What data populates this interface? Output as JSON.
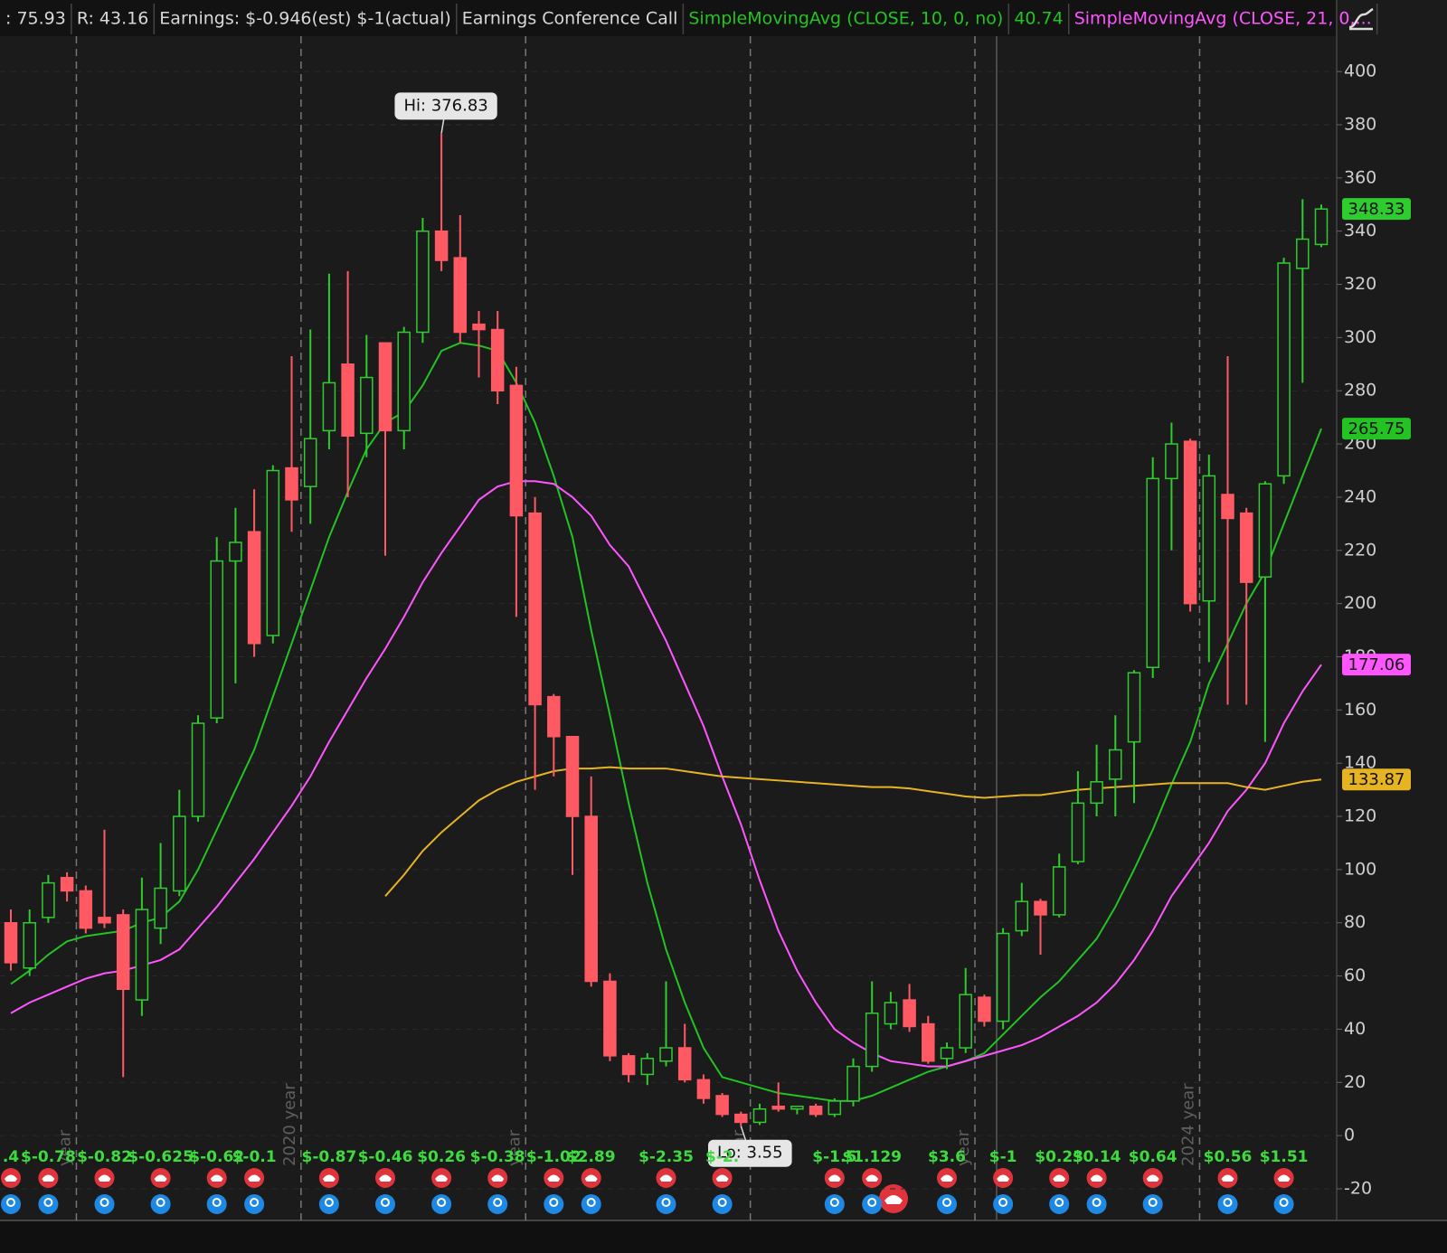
{
  "chart_data": {
    "type": "candlestick",
    "header": [
      {
        "text": ": 75.93"
      },
      {
        "text": "R: 43.16"
      },
      {
        "text": "Earnings: $-0.946(est) $-1(actual)"
      },
      {
        "text": "Earnings Conference Call"
      }
    ],
    "annotations": {
      "hi": "Hi: 376.83",
      "lo": "Lo: 3.55"
    },
    "categories": [
      null,
      null,
      null,
      null,
      "year",
      null,
      null,
      null,
      null,
      null,
      null,
      null,
      null,
      null,
      null,
      null,
      "2020 year",
      null,
      null,
      null,
      null,
      null,
      null,
      null,
      null,
      null,
      null,
      null,
      "year",
      null,
      null,
      null,
      null,
      null,
      null,
      null,
      null,
      null,
      null,
      null,
      "year",
      null,
      null,
      null,
      null,
      null,
      null,
      null,
      null,
      null,
      null,
      null,
      "year",
      null,
      null,
      null,
      null,
      null,
      null,
      null,
      null,
      null,
      null,
      null,
      "2024 year",
      null,
      null,
      null,
      null,
      null,
      null
    ],
    "open": [
      80,
      63,
      82,
      97,
      92,
      82,
      83,
      51,
      78,
      92,
      120,
      157,
      216,
      227,
      188,
      251,
      244,
      265,
      290,
      264,
      298,
      265,
      302,
      340,
      330,
      305,
      303,
      282,
      234,
      165,
      150,
      120,
      58,
      30,
      23,
      28,
      33,
      21,
      15,
      8,
      5,
      11,
      10,
      11,
      8,
      13,
      26,
      42,
      51,
      42,
      29,
      33,
      52,
      43,
      77,
      88,
      83,
      103,
      125,
      134,
      148,
      176,
      247,
      261,
      201,
      241,
      234,
      210,
      248,
      326,
      335
    ],
    "high": [
      85,
      85,
      98,
      99,
      94,
      115,
      85,
      97,
      110,
      130,
      158,
      225,
      236,
      243,
      252,
      293,
      303,
      324,
      325,
      301,
      298,
      304,
      345,
      376.83,
      346,
      310,
      310,
      289,
      240,
      166,
      150,
      135,
      61,
      31,
      31,
      58,
      42,
      23,
      16,
      9,
      12,
      20,
      11,
      12,
      14,
      29,
      58,
      54,
      57,
      45,
      35,
      63,
      53,
      78,
      95,
      89,
      106,
      137,
      147,
      158,
      175,
      255,
      268,
      262,
      256,
      293,
      236,
      246,
      330,
      352,
      350
    ],
    "low": [
      62,
      60,
      80,
      88,
      76,
      78,
      22,
      45,
      72,
      90,
      118,
      155,
      170,
      180,
      185,
      227,
      230,
      258,
      240,
      255,
      218,
      258,
      298,
      325,
      298,
      285,
      275,
      195,
      130,
      135,
      98,
      56,
      28,
      20,
      19,
      26,
      20,
      12,
      7,
      3.55,
      4,
      9,
      8,
      7,
      7,
      11,
      24,
      40,
      39,
      27,
      25,
      31,
      41,
      40,
      75,
      68,
      82,
      102,
      120,
      120,
      125,
      172,
      220,
      197,
      178,
      162,
      162,
      148,
      245,
      283,
      334
    ],
    "close": [
      65,
      80,
      95,
      92,
      78,
      80,
      55,
      85,
      93,
      120,
      155,
      216,
      223,
      185,
      250,
      239,
      262,
      283,
      263,
      285,
      265,
      302,
      340,
      329,
      302,
      303,
      280,
      233,
      162,
      150,
      120,
      58,
      30,
      23,
      29,
      33,
      21,
      14,
      8,
      5,
      10,
      10,
      11,
      8,
      13,
      26,
      46,
      50,
      41,
      28,
      33,
      53,
      43,
      76,
      88,
      83,
      101,
      125,
      133,
      145,
      174,
      247,
      260,
      200,
      248,
      232,
      208,
      245,
      328,
      337,
      348.33
    ],
    "up_color": "#2fcc2f",
    "down_color": "#ff5a64",
    "earnings": [
      ".4",
      null,
      "$-0.78",
      null,
      null,
      "$-0.82",
      null,
      null,
      "$-0.625",
      null,
      null,
      "$-0.62",
      null,
      "$-0.1",
      null,
      null,
      null,
      "$-0.87",
      null,
      null,
      "$-0.46",
      null,
      null,
      "$0.26",
      null,
      null,
      "$-0.38",
      null,
      null,
      "$-1.02",
      null,
      "$2.89",
      null,
      null,
      null,
      "$-2.35",
      null,
      null,
      "$-2.",
      null,
      null,
      null,
      null,
      null,
      "$-1.5",
      null,
      "$1.129",
      null,
      null,
      null,
      "$3.6",
      null,
      null,
      "$-1",
      null,
      null,
      "$0.23",
      null,
      "$0.14",
      null,
      null,
      "$0.64",
      null,
      null,
      null,
      "$0.56",
      null,
      null,
      "$1.51",
      null,
      null
    ],
    "series": [
      {
        "name": "SimpleMovingAvg (CLOSE, 10, 0, no)",
        "readout": 40.74,
        "color": "#22c322",
        "values": [
          57,
          62,
          68,
          73,
          75,
          76,
          77,
          80,
          82,
          88,
          100,
          115,
          130,
          145,
          165,
          185,
          205,
          225,
          242,
          258,
          268,
          272,
          282,
          295,
          298,
          297,
          295,
          283,
          268,
          248,
          225,
          190,
          158,
          125,
          95,
          70,
          50,
          33,
          22,
          20,
          18,
          16,
          15,
          14,
          13,
          13,
          15,
          18,
          21,
          24,
          26,
          28,
          31,
          38,
          45,
          52,
          58,
          66,
          74,
          86,
          100,
          115,
          132,
          148,
          170,
          185,
          200,
          212,
          230,
          248,
          265.75
        ]
      },
      {
        "name": "SimpleMovingAvg (CLOSE, 21, 0,...",
        "color": "#ff55ff",
        "values": [
          46,
          50,
          53,
          56,
          59,
          61,
          62,
          64,
          66,
          70,
          78,
          86,
          95,
          104,
          114,
          124,
          135,
          148,
          160,
          172,
          183,
          195,
          208,
          219,
          229,
          239,
          244,
          246,
          246,
          245,
          240,
          233,
          222,
          214,
          200,
          186,
          170,
          154,
          135,
          117,
          96,
          77,
          62,
          50,
          40,
          35,
          31,
          28,
          27,
          26,
          26,
          28,
          30,
          32,
          34,
          37,
          41,
          45,
          50,
          57,
          66,
          77,
          90,
          100,
          110,
          122,
          130,
          140,
          155,
          167,
          177.06
        ]
      },
      {
        "color": "#e6b422",
        "values": [
          null,
          null,
          null,
          null,
          null,
          null,
          null,
          null,
          null,
          null,
          null,
          null,
          null,
          null,
          null,
          null,
          null,
          null,
          null,
          null,
          90,
          98,
          107,
          114,
          120,
          126,
          130,
          133,
          135,
          137,
          138,
          138,
          138.5,
          138,
          138,
          138,
          137,
          136,
          135,
          134.5,
          134,
          133.5,
          133,
          132.5,
          132,
          131.5,
          131,
          131,
          130.5,
          129.5,
          128.5,
          127.5,
          127,
          127.5,
          128,
          128,
          129,
          130,
          130.5,
          131,
          131.5,
          132,
          132.5,
          132.5,
          132.5,
          132.5,
          131,
          130,
          131.5,
          133,
          133.87
        ]
      }
    ],
    "ylim": [
      -30.2,
      413.3
    ],
    "yticks": [
      -20,
      0,
      20,
      40,
      60,
      80,
      100,
      120,
      140,
      160,
      180,
      200,
      220,
      240,
      260,
      280,
      300,
      320,
      340,
      360,
      380,
      400
    ],
    "grid": true
  }
}
